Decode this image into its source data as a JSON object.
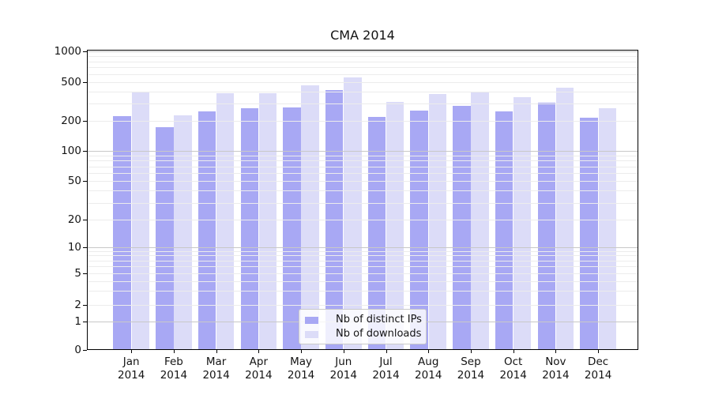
{
  "chart_data": {
    "type": "bar",
    "title": "CMA 2014",
    "categories": [
      "Jan 2014",
      "Feb 2014",
      "Mar 2014",
      "Apr 2014",
      "May 2014",
      "Jun 2014",
      "Jul 2014",
      "Aug 2014",
      "Sep 2014",
      "Oct 2014",
      "Nov 2014",
      "Dec 2014"
    ],
    "series": [
      {
        "name": "Nb of distinct IPs",
        "color": "#a8a8f4",
        "values": [
          226,
          173,
          251,
          269,
          277,
          413,
          222,
          256,
          288,
          251,
          308,
          217
        ]
      },
      {
        "name": "Nb of downloads",
        "color": "#dcdcf8",
        "values": [
          390,
          230,
          383,
          388,
          466,
          553,
          312,
          378,
          391,
          349,
          439,
          272
        ]
      }
    ],
    "y_axis": {
      "scale": "symlog",
      "tick_values": [
        1000,
        500,
        200,
        100,
        50,
        20,
        10,
        5,
        2,
        1,
        0
      ],
      "ylim": [
        0,
        1100
      ]
    },
    "x_axis": {
      "tick_label_format": "two-line month/year"
    },
    "grid": {
      "horizontal": true,
      "minor_color": "#ececec",
      "decade_color": "#c8c8c8"
    },
    "legend": {
      "position": "inside-bottom-center",
      "entries": [
        "Nb of distinct IPs",
        "Nb of downloads"
      ]
    },
    "colors": {
      "frame": "#000000",
      "text": "#141414",
      "background": "#ffffff"
    }
  }
}
